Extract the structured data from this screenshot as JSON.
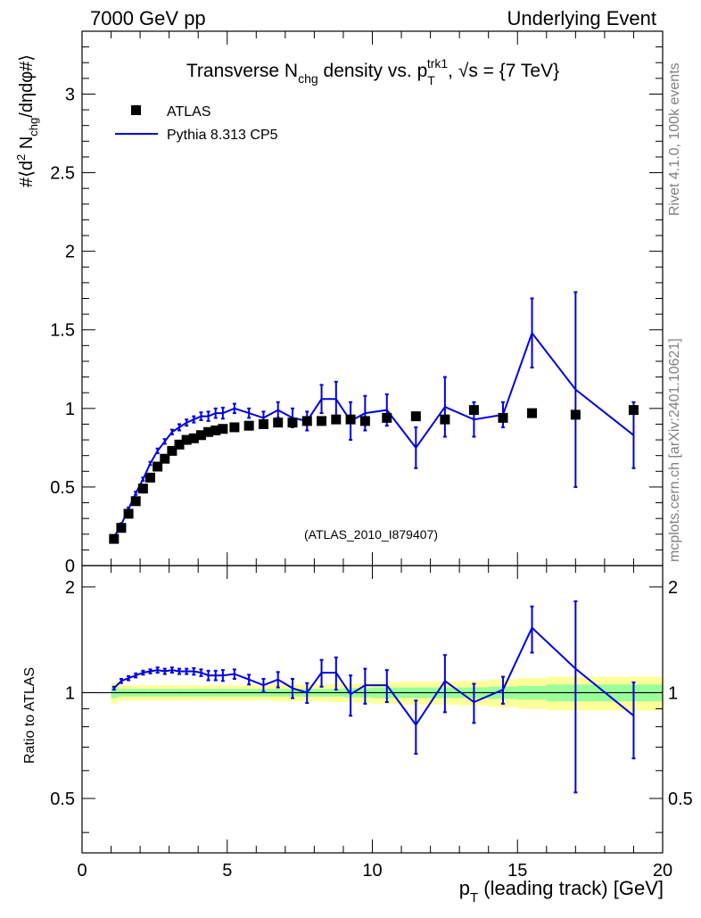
{
  "header": {
    "left": "7000 GeV pp",
    "right": "Underlying Event"
  },
  "side_labels": {
    "rivet": "Rivet 4.1.0,  100k events",
    "mcplots": "mcplots.cern.ch [arXiv:2401.10621]"
  },
  "colors": {
    "mc": "#0000e0",
    "data": "#000000",
    "band_inner": "#99ff99",
    "band_outer": "#ffff99",
    "watermark": "#999999"
  },
  "chart_data": [
    {
      "id": "main",
      "type": "scatter",
      "title_parts": {
        "pre": "Transverse N",
        "sub1": "chg",
        "mid": " density vs. p",
        "sub2": "T",
        "sup": "trk1",
        "post": ", √s = {7 TeV}"
      },
      "ylabel_parts": {
        "a": "#⟨d",
        "sup": "2",
        "b": " N",
        "sub": "chg",
        "c": "/dηdφ#⟩"
      },
      "watermark": "(ATLAS_2010_I879407)",
      "xlim": [
        0,
        20
      ],
      "ylim": [
        0,
        3.4
      ],
      "yticks": [
        0,
        0.5,
        1,
        1.5,
        2,
        2.5,
        3
      ],
      "ytick_labels": [
        "0",
        "0.5",
        "1",
        "1.5",
        "2",
        "2.5",
        "3"
      ],
      "legend": [
        {
          "name": "ATLAS",
          "kind": "marker"
        },
        {
          "name": "Pythia 8.313 CP5",
          "kind": "line"
        }
      ],
      "series": [
        {
          "name": "ATLAS",
          "x": [
            1.1,
            1.35,
            1.6,
            1.85,
            2.1,
            2.35,
            2.6,
            2.85,
            3.1,
            3.35,
            3.6,
            3.85,
            4.1,
            4.35,
            4.6,
            4.85,
            5.25,
            5.75,
            6.25,
            6.75,
            7.25,
            7.75,
            8.25,
            8.75,
            9.25,
            9.75,
            10.5,
            11.5,
            12.5,
            13.5,
            14.5,
            15.5,
            17.0,
            19.0
          ],
          "y": [
            0.17,
            0.24,
            0.33,
            0.41,
            0.49,
            0.56,
            0.63,
            0.68,
            0.73,
            0.77,
            0.8,
            0.81,
            0.83,
            0.85,
            0.86,
            0.87,
            0.88,
            0.89,
            0.9,
            0.91,
            0.91,
            0.92,
            0.92,
            0.93,
            0.93,
            0.92,
            0.94,
            0.95,
            0.93,
            0.99,
            0.94,
            0.97,
            0.96,
            0.99
          ]
        },
        {
          "name": "Pythia 8.313 CP5",
          "x": [
            1.1,
            1.35,
            1.6,
            1.85,
            2.1,
            2.35,
            2.6,
            2.85,
            3.1,
            3.35,
            3.6,
            3.85,
            4.1,
            4.35,
            4.6,
            4.85,
            5.25,
            5.75,
            6.25,
            6.75,
            7.25,
            7.75,
            8.25,
            8.75,
            9.25,
            9.75,
            10.5,
            11.5,
            12.5,
            13.5,
            14.5,
            15.5,
            17.0,
            19.0
          ],
          "y": [
            0.18,
            0.26,
            0.36,
            0.46,
            0.55,
            0.65,
            0.73,
            0.79,
            0.85,
            0.88,
            0.91,
            0.93,
            0.95,
            0.95,
            0.97,
            0.97,
            1.0,
            0.97,
            0.94,
            0.99,
            0.94,
            0.92,
            1.06,
            1.06,
            0.92,
            0.97,
            0.99,
            0.75,
            1.01,
            0.93,
            0.96,
            1.48,
            1.12,
            0.83
          ],
          "yerr": [
            0.01,
            0.01,
            0.01,
            0.01,
            0.01,
            0.01,
            0.015,
            0.015,
            0.015,
            0.02,
            0.02,
            0.02,
            0.025,
            0.03,
            0.03,
            0.035,
            0.03,
            0.03,
            0.04,
            0.05,
            0.06,
            0.06,
            0.09,
            0.11,
            0.12,
            0.11,
            0.1,
            0.13,
            0.19,
            0.11,
            0.08,
            0.22,
            0.62,
            0.21
          ]
        }
      ]
    },
    {
      "id": "ratio",
      "type": "line",
      "ylabel": "Ratio to ATLAS",
      "xlabel_parts": {
        "pre": "p",
        "sub": "T",
        "post": " (leading track) [GeV]"
      },
      "xlim": [
        0,
        20
      ],
      "xticks": [
        0,
        5,
        10,
        15,
        20
      ],
      "xtick_labels": [
        "0",
        "5",
        "10",
        "15",
        "20"
      ],
      "ylim": [
        0.35,
        2.3
      ],
      "yticks": [
        0.5,
        1,
        2
      ],
      "ytick_labels": [
        "0.5",
        "1",
        "2"
      ],
      "bands": {
        "edges": [
          1.0,
          1.25,
          1.5,
          1.75,
          2.0,
          2.25,
          2.5,
          2.75,
          3.0,
          3.25,
          3.5,
          3.75,
          4.0,
          4.25,
          4.5,
          4.75,
          5.0,
          5.5,
          6.0,
          6.5,
          7.0,
          7.5,
          8.0,
          8.5,
          9.0,
          9.5,
          10.0,
          11.0,
          12.0,
          13.0,
          14.0,
          15.0,
          16.0,
          18.0,
          20.0
        ],
        "inner": [
          0.035,
          0.025,
          0.025,
          0.025,
          0.025,
          0.025,
          0.025,
          0.025,
          0.025,
          0.025,
          0.025,
          0.025,
          0.025,
          0.025,
          0.025,
          0.025,
          0.025,
          0.025,
          0.025,
          0.025,
          0.025,
          0.025,
          0.025,
          0.025,
          0.03,
          0.03,
          0.035,
          0.035,
          0.035,
          0.035,
          0.04,
          0.045,
          0.055,
          0.055
        ],
        "outer": [
          0.07,
          0.05,
          0.05,
          0.05,
          0.05,
          0.05,
          0.05,
          0.05,
          0.05,
          0.05,
          0.05,
          0.05,
          0.05,
          0.05,
          0.05,
          0.05,
          0.05,
          0.05,
          0.05,
          0.055,
          0.055,
          0.055,
          0.055,
          0.06,
          0.06,
          0.065,
          0.07,
          0.075,
          0.075,
          0.08,
          0.09,
          0.1,
          0.11,
          0.11
        ]
      },
      "series": [
        {
          "name": "Pythia 8.313 CP5 / ATLAS",
          "x": [
            1.1,
            1.35,
            1.6,
            1.85,
            2.1,
            2.35,
            2.6,
            2.85,
            3.1,
            3.35,
            3.6,
            3.85,
            4.1,
            4.35,
            4.6,
            4.85,
            5.25,
            5.75,
            6.25,
            6.75,
            7.25,
            7.75,
            8.25,
            8.75,
            9.25,
            9.75,
            10.5,
            11.5,
            12.5,
            13.5,
            14.5,
            15.5,
            17.0,
            19.0
          ],
          "y": [
            1.03,
            1.08,
            1.1,
            1.12,
            1.14,
            1.15,
            1.16,
            1.15,
            1.16,
            1.15,
            1.15,
            1.15,
            1.14,
            1.12,
            1.12,
            1.12,
            1.13,
            1.09,
            1.05,
            1.09,
            1.03,
            1.0,
            1.14,
            1.14,
            0.99,
            1.05,
            1.05,
            0.81,
            1.08,
            0.94,
            1.02,
            1.53,
            1.17,
            0.86
          ],
          "yerr": [
            0.01,
            0.015,
            0.015,
            0.015,
            0.015,
            0.015,
            0.02,
            0.02,
            0.02,
            0.02,
            0.02,
            0.025,
            0.025,
            0.035,
            0.035,
            0.04,
            0.035,
            0.035,
            0.045,
            0.055,
            0.065,
            0.065,
            0.1,
            0.12,
            0.13,
            0.12,
            0.11,
            0.14,
            0.2,
            0.12,
            0.09,
            0.23,
            0.65,
            0.21
          ]
        }
      ]
    }
  ]
}
